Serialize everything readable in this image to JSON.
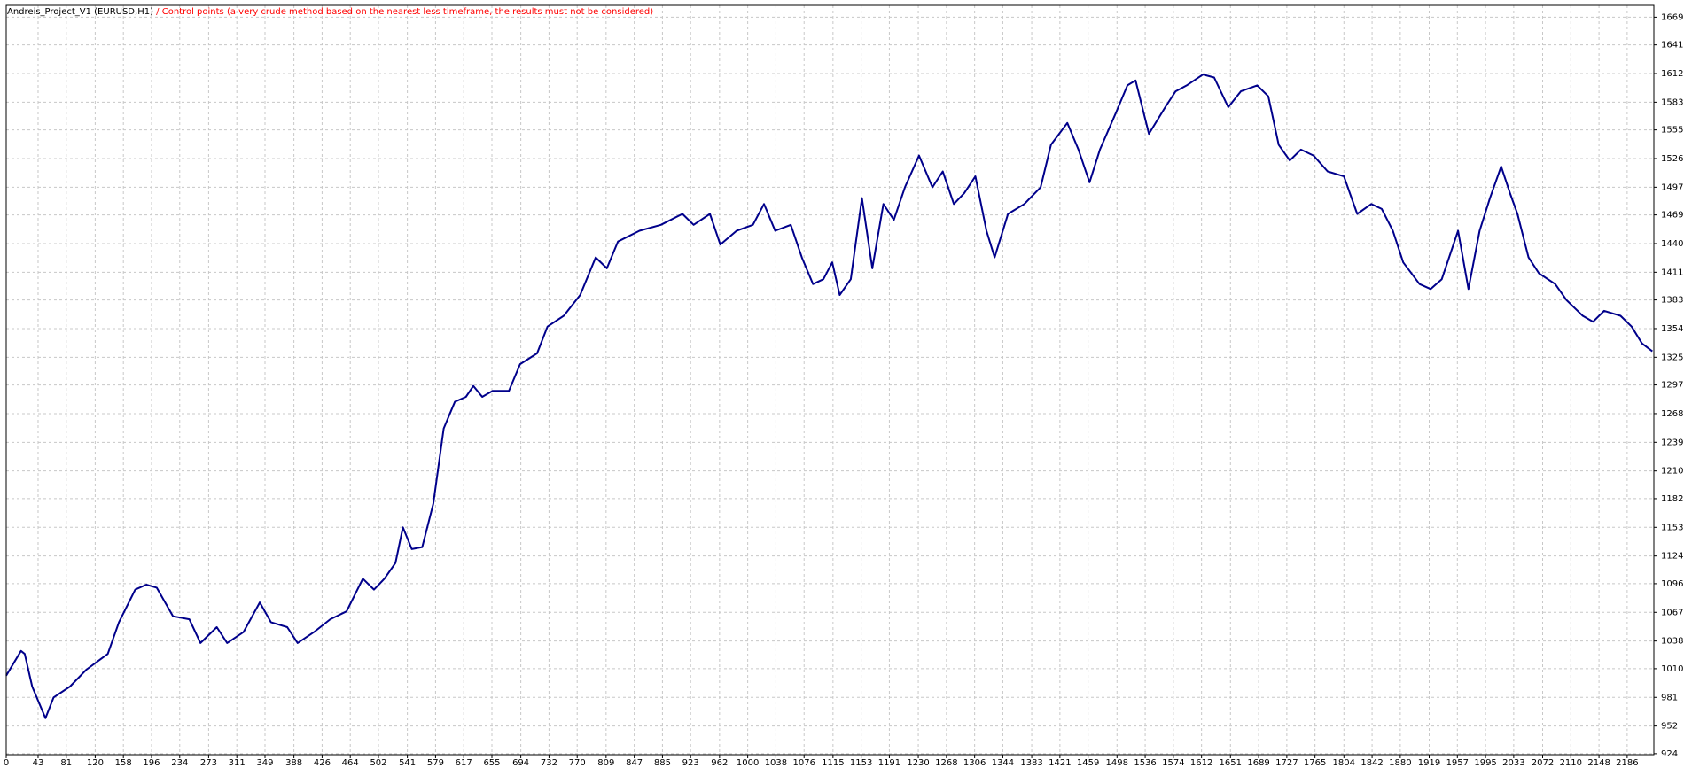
{
  "chart_data": {
    "type": "line",
    "title": "Andreis_Project_V1 (EURUSD,H1)",
    "subtitle": "/ Control points (a very crude method based on the nearest less timeframe, the results must not be considered)",
    "title_color": "#000000",
    "subtitle_color": "#ff0000",
    "color": "#00008b",
    "grid": true,
    "xlim": [
      0,
      2222
    ],
    "ylim": [
      923,
      1681
    ],
    "xticks": [
      0,
      43,
      81,
      120,
      158,
      196,
      234,
      273,
      311,
      349,
      388,
      426,
      464,
      502,
      541,
      579,
      617,
      655,
      694,
      732,
      770,
      809,
      847,
      885,
      923,
      962,
      1000,
      1038,
      1076,
      1115,
      1153,
      1191,
      1230,
      1268,
      1306,
      1344,
      1383,
      1421,
      1459,
      1498,
      1536,
      1574,
      1612,
      1651,
      1689,
      1727,
      1765,
      1804,
      1842,
      1880,
      1919,
      1957,
      1995,
      2033,
      2072,
      2110,
      2148,
      2186
    ],
    "yticks": [
      924,
      952,
      981,
      1010,
      1038,
      1067,
      1096,
      1124,
      1153,
      1182,
      1210,
      1239,
      1268,
      1297,
      1325,
      1354,
      1383,
      1411,
      1440,
      1469,
      1497,
      1526,
      1555,
      1583,
      1612,
      1641,
      1669
    ],
    "x": [
      0,
      20,
      25,
      35,
      53,
      64,
      86,
      108,
      126,
      137,
      152,
      174,
      189,
      203,
      225,
      247,
      262,
      284,
      298,
      320,
      342,
      357,
      379,
      393,
      415,
      437,
      459,
      481,
      496,
      510,
      525,
      535,
      547,
      561,
      576,
      590,
      605,
      620,
      630,
      642,
      656,
      678,
      693,
      716,
      730,
      752,
      774,
      795,
      810,
      825,
      854,
      883,
      912,
      927,
      949,
      963,
      985,
      1007,
      1022,
      1037,
      1058,
      1073,
      1088,
      1102,
      1114,
      1124,
      1139,
      1154,
      1168,
      1183,
      1197,
      1212,
      1231,
      1249,
      1263,
      1278,
      1292,
      1307,
      1322,
      1333,
      1351,
      1373,
      1395,
      1409,
      1431,
      1446,
      1461,
      1475,
      1497,
      1512,
      1523,
      1541,
      1563,
      1577,
      1592,
      1614,
      1629,
      1648,
      1665,
      1687,
      1702,
      1716,
      1731,
      1746,
      1763,
      1782,
      1804,
      1822,
      1841,
      1855,
      1870,
      1884,
      1906,
      1921,
      1936,
      1958,
      1972,
      1987,
      2001,
      2016,
      2028,
      2038,
      2053,
      2067,
      2089,
      2104,
      2126,
      2140,
      2155,
      2177,
      2192,
      2206,
      2220
    ],
    "values": [
      1003,
      1028,
      1025,
      992,
      960,
      981,
      992,
      1009,
      1019,
      1025,
      1057,
      1090,
      1095,
      1092,
      1063,
      1060,
      1036,
      1052,
      1036,
      1047,
      1077,
      1057,
      1052,
      1036,
      1047,
      1060,
      1068,
      1101,
      1090,
      1101,
      1117,
      1153,
      1131,
      1133,
      1177,
      1253,
      1280,
      1285,
      1296,
      1285,
      1291,
      1291,
      1318,
      1329,
      1356,
      1367,
      1388,
      1426,
      1415,
      1442,
      1453,
      1459,
      1470,
      1459,
      1470,
      1439,
      1453,
      1459,
      1480,
      1453,
      1459,
      1426,
      1399,
      1404,
      1421,
      1388,
      1404,
      1486,
      1415,
      1480,
      1464,
      1497,
      1529,
      1497,
      1513,
      1480,
      1491,
      1508,
      1453,
      1426,
      1470,
      1480,
      1497,
      1540,
      1562,
      1535,
      1502,
      1535,
      1573,
      1600,
      1605,
      1551,
      1578,
      1594,
      1600,
      1611,
      1608,
      1578,
      1594,
      1600,
      1589,
      1540,
      1524,
      1535,
      1529,
      1513,
      1508,
      1470,
      1480,
      1475,
      1453,
      1421,
      1399,
      1394,
      1404,
      1453,
      1394,
      1453,
      1486,
      1518,
      1491,
      1470,
      1426,
      1410,
      1399,
      1383,
      1367,
      1361,
      1372,
      1367,
      1356,
      1339,
      1331
    ]
  }
}
